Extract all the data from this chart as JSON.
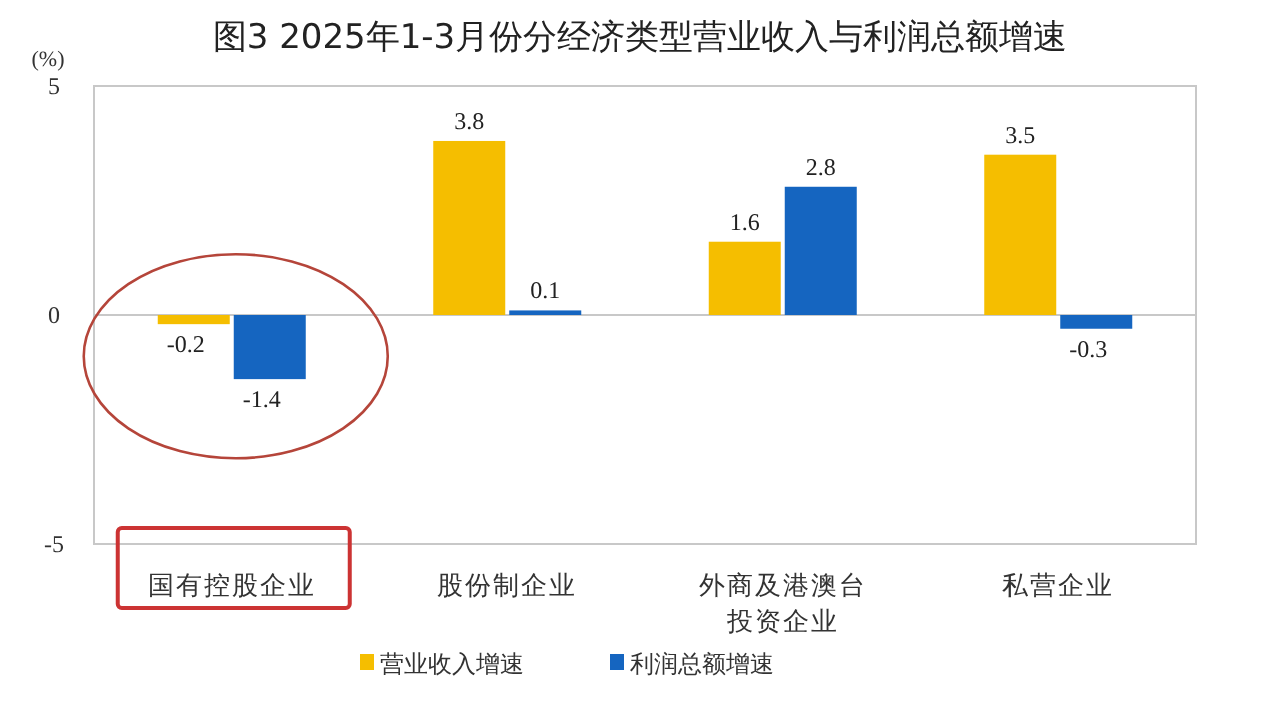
{
  "chart_data": {
    "type": "bar",
    "title": "图3 2025年1-3月份分经济类型营业收入与利润总额增速",
    "ylabel": "(%)",
    "categories": [
      "国有控股企业",
      "股份制企业",
      "外商及港澳台投资企业",
      "私营企业"
    ],
    "series": [
      {
        "name": "营业收入增速",
        "color": "#f5be00",
        "values": [
          -0.2,
          3.8,
          1.6,
          3.5
        ]
      },
      {
        "name": "利润总额增速",
        "color": "#1565c0",
        "values": [
          -1.4,
          0.1,
          2.8,
          -0.3
        ]
      }
    ],
    "ylim": [
      -5,
      5
    ],
    "yticks": [
      -5,
      0,
      5
    ],
    "data_labels": true,
    "legend": "bottom"
  }
}
